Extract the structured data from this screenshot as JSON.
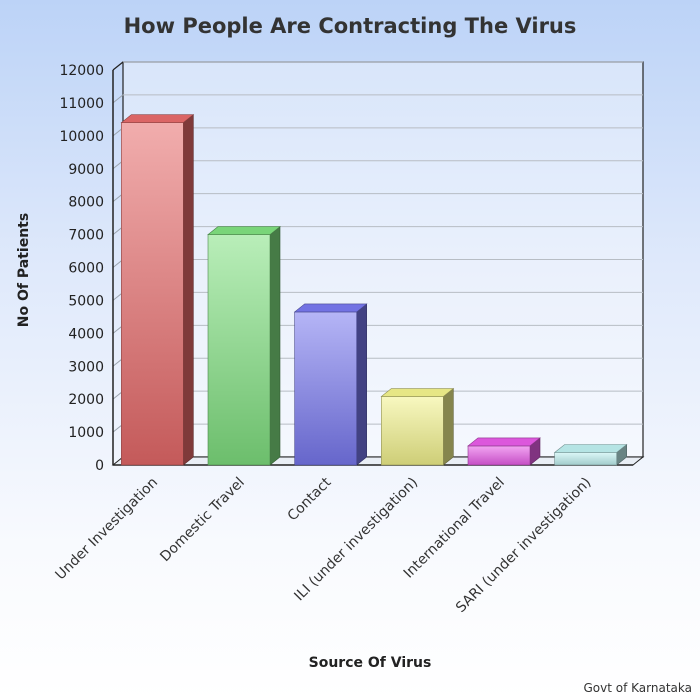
{
  "chart_data": {
    "type": "bar",
    "title": "How People Are Contracting The Virus",
    "xlabel": "Source Of Virus",
    "ylabel": "No Of Patients",
    "source": "Govt of Karnataka",
    "categories": [
      "Under Investigation",
      "Domestic Travel",
      "Contact",
      "ILI (under investigation)",
      "International Travel",
      "SARI (under investigation)"
    ],
    "values": [
      10400,
      7000,
      4650,
      2080,
      580,
      380
    ],
    "ylim": [
      0,
      12000
    ],
    "yticks": [
      0,
      1000,
      2000,
      3000,
      4000,
      5000,
      6000,
      7000,
      8000,
      9000,
      10000,
      11000,
      12000
    ],
    "grid": true,
    "legend": "none",
    "colors": [
      "#e66a6a",
      "#7fe07f",
      "#7878ef",
      "#f2f28c",
      "#e85ce8",
      "#bff0f0"
    ]
  }
}
